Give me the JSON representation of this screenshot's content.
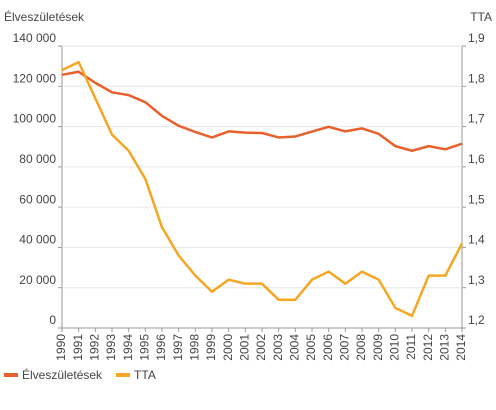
{
  "chart_data": {
    "type": "line",
    "y_label": "Élveszületések",
    "y2_label": "TTA",
    "categories": [
      "1990",
      "1991",
      "1992",
      "1993",
      "1994",
      "1995",
      "1996",
      "1997",
      "1998",
      "1999",
      "2000",
      "2001",
      "2002",
      "2003",
      "2004",
      "2005",
      "2006",
      "2007",
      "2008",
      "2009",
      "2010",
      "2011",
      "2012",
      "2013",
      "2014"
    ],
    "series": [
      {
        "name": "Élveszületések",
        "color": "#e8612c",
        "values": [
          125700,
          127200,
          121700,
          117000,
          115600,
          112100,
          105300,
          100400,
          97300,
          94600,
          97600,
          97000,
          96800,
          94600,
          95100,
          97500,
          99900,
          97600,
          99100,
          96400,
          90300,
          88000,
          90300,
          88700,
          91500
        ]
      },
      {
        "name": "TTA",
        "color": "#f5a623",
        "axis": "y2",
        "values": [
          1.84,
          1.86,
          1.77,
          1.68,
          1.64,
          1.57,
          1.45,
          1.38,
          1.33,
          1.29,
          1.32,
          1.31,
          1.31,
          1.27,
          1.27,
          1.32,
          1.34,
          1.31,
          1.34,
          1.32,
          1.25,
          1.23,
          1.33,
          1.33,
          1.41
        ]
      }
    ],
    "ylim": [
      0,
      140000
    ],
    "yticks": [
      0,
      {
        "value": 20000,
        "label": "20 000"
      },
      {
        "value": 40000,
        "label": "40 000"
      },
      {
        "value": 60000,
        "label": "60 000"
      },
      {
        "value": 80000,
        "label": "80 000"
      },
      {
        "value": 100000,
        "label": "100 000"
      },
      {
        "value": 120000,
        "label": "120 000"
      },
      {
        "value": 140000,
        "label": "140 000"
      }
    ],
    "y2lim": [
      1.2,
      1.9
    ],
    "y2ticks": [
      {
        "value": 1.2,
        "label": "1,2"
      },
      {
        "value": 1.3,
        "label": "1,3"
      },
      {
        "value": 1.4,
        "label": "1,4"
      },
      {
        "value": 1.5,
        "label": "1,5"
      },
      {
        "value": 1.6,
        "label": "1,6"
      },
      {
        "value": 1.7,
        "label": "1,7"
      },
      {
        "value": 1.8,
        "label": "1,8"
      },
      {
        "value": 1.9,
        "label": "1,9"
      }
    ],
    "grid": true
  }
}
